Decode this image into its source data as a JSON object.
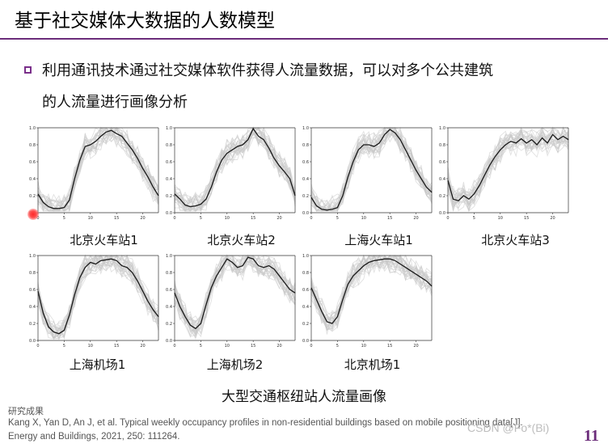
{
  "header": {
    "title": "基于社交媒体大数据的人数模型"
  },
  "content": {
    "bullet_line1": "利用通讯技术通过社交媒体软件获得人流量数据，可以对多个公共建筑",
    "bullet_line2": "的人流量进行画像分析"
  },
  "chart_data": [
    {
      "type": "line",
      "title": "北京火车站1",
      "x": [
        0,
        1,
        2,
        3,
        4,
        5,
        6,
        7,
        8,
        9,
        10,
        11,
        12,
        13,
        14,
        15,
        16,
        17,
        18,
        19,
        20,
        21,
        22,
        23
      ],
      "values": [
        0.22,
        0.12,
        0.07,
        0.05,
        0.05,
        0.06,
        0.15,
        0.4,
        0.62,
        0.78,
        0.8,
        0.84,
        0.9,
        0.95,
        0.97,
        0.93,
        0.9,
        0.82,
        0.74,
        0.64,
        0.52,
        0.42,
        0.3,
        0.2
      ],
      "xticks": [
        "0",
        "5",
        "10",
        "15",
        "20"
      ],
      "yticks": [
        "0.0",
        "0.2",
        "0.4",
        "0.6",
        "0.8",
        "1.0"
      ],
      "ylim": [
        0,
        1
      ]
    },
    {
      "type": "line",
      "title": "北京火车站2",
      "x": [
        0,
        1,
        2,
        3,
        4,
        5,
        6,
        7,
        8,
        9,
        10,
        11,
        12,
        13,
        14,
        15,
        16,
        17,
        18,
        19,
        20,
        21,
        22,
        23
      ],
      "values": [
        0.22,
        0.16,
        0.09,
        0.07,
        0.08,
        0.1,
        0.16,
        0.3,
        0.48,
        0.62,
        0.7,
        0.74,
        0.78,
        0.8,
        0.86,
        0.99,
        0.9,
        0.86,
        0.76,
        0.64,
        0.55,
        0.48,
        0.4,
        0.2
      ],
      "xticks": [
        "0",
        "5",
        "10",
        "15",
        "20"
      ],
      "yticks": [
        "0.0",
        "0.2",
        "0.4",
        "0.6",
        "0.8",
        "1.0"
      ],
      "ylim": [
        0,
        1
      ]
    },
    {
      "type": "line",
      "title": "上海火车站1",
      "x": [
        0,
        1,
        2,
        3,
        4,
        5,
        6,
        7,
        8,
        9,
        10,
        11,
        12,
        13,
        14,
        15,
        16,
        17,
        18,
        19,
        20,
        21,
        22,
        23
      ],
      "values": [
        0.18,
        0.08,
        0.04,
        0.03,
        0.04,
        0.06,
        0.2,
        0.42,
        0.6,
        0.74,
        0.8,
        0.8,
        0.78,
        0.82,
        0.92,
        0.98,
        0.94,
        0.86,
        0.74,
        0.62,
        0.5,
        0.4,
        0.3,
        0.24
      ],
      "xticks": [
        "0",
        "5",
        "10",
        "15",
        "20"
      ],
      "yticks": [
        "0.0",
        "0.2",
        "0.4",
        "0.6",
        "0.8",
        "1.0"
      ],
      "ylim": [
        0,
        1
      ]
    },
    {
      "type": "line",
      "title": "北京火车站3",
      "x": [
        0,
        1,
        2,
        3,
        4,
        5,
        6,
        7,
        8,
        9,
        10,
        11,
        12,
        13,
        14,
        15,
        16,
        17,
        18,
        19,
        20,
        21,
        22,
        23
      ],
      "values": [
        0.38,
        0.16,
        0.14,
        0.2,
        0.16,
        0.22,
        0.32,
        0.44,
        0.56,
        0.66,
        0.74,
        0.8,
        0.84,
        0.82,
        0.87,
        0.82,
        0.86,
        0.8,
        0.88,
        0.82,
        0.92,
        0.86,
        0.9,
        0.86
      ],
      "xticks": [
        "0",
        "5",
        "10",
        "15",
        "20"
      ],
      "yticks": [
        "0.0",
        "0.2",
        "0.4",
        "0.6",
        "0.8",
        "1.0"
      ],
      "ylim": [
        0,
        1
      ]
    },
    {
      "type": "line",
      "title": "上海机场1",
      "x": [
        0,
        1,
        2,
        3,
        4,
        5,
        6,
        7,
        8,
        9,
        10,
        11,
        12,
        13,
        14,
        15,
        16,
        17,
        18,
        19,
        20,
        21,
        22,
        23
      ],
      "values": [
        0.58,
        0.32,
        0.16,
        0.1,
        0.08,
        0.12,
        0.3,
        0.54,
        0.74,
        0.86,
        0.92,
        0.9,
        0.94,
        0.95,
        0.96,
        0.94,
        0.88,
        0.86,
        0.8,
        0.7,
        0.58,
        0.46,
        0.36,
        0.28
      ],
      "xticks": [
        "0",
        "5",
        "10",
        "15",
        "20"
      ],
      "yticks": [
        "0.0",
        "0.2",
        "0.4",
        "0.6",
        "0.8",
        "1.0"
      ],
      "ylim": [
        0,
        1
      ]
    },
    {
      "type": "line",
      "title": "上海机场2",
      "x": [
        0,
        1,
        2,
        3,
        4,
        5,
        6,
        7,
        8,
        9,
        10,
        11,
        12,
        13,
        14,
        15,
        16,
        17,
        18,
        19,
        20,
        21,
        22,
        23
      ],
      "values": [
        0.56,
        0.4,
        0.28,
        0.18,
        0.14,
        0.2,
        0.42,
        0.62,
        0.76,
        0.86,
        0.96,
        0.92,
        0.86,
        0.88,
        0.98,
        0.96,
        0.88,
        0.86,
        0.88,
        0.84,
        0.76,
        0.68,
        0.6,
        0.56
      ],
      "xticks": [
        "0",
        "5",
        "10",
        "15",
        "20"
      ],
      "yticks": [
        "0.0",
        "0.2",
        "0.4",
        "0.6",
        "0.8",
        "1.0"
      ],
      "ylim": [
        0,
        1
      ]
    },
    {
      "type": "line",
      "title": "北京机场1",
      "x": [
        0,
        1,
        2,
        3,
        4,
        5,
        6,
        7,
        8,
        9,
        10,
        11,
        12,
        13,
        14,
        15,
        16,
        17,
        18,
        19,
        20,
        21,
        22,
        23
      ],
      "values": [
        0.62,
        0.48,
        0.34,
        0.22,
        0.2,
        0.28,
        0.48,
        0.66,
        0.76,
        0.82,
        0.88,
        0.92,
        0.94,
        0.95,
        0.96,
        0.96,
        0.94,
        0.9,
        0.86,
        0.82,
        0.78,
        0.74,
        0.7,
        0.64
      ],
      "xticks": [
        "0",
        "5",
        "10",
        "15",
        "20"
      ],
      "yticks": [
        "0.0",
        "0.2",
        "0.4",
        "0.6",
        "0.8",
        "1.0"
      ],
      "ylim": [
        0,
        1
      ]
    }
  ],
  "figure_caption": "大型交通枢纽站人流量画像",
  "reference": {
    "heading": "研究成果",
    "line1": "Kang X, Yan D, An J, et al. Typical weekly occupancy profiles in non-residential buildings based on mobile positioning data[J].",
    "line2": "Energy and Buildings, 2021, 250: 111264."
  },
  "watermark": "CSDN @Fo*(Bi)",
  "page_number": "11",
  "colors": {
    "accent": "#6b2c7a",
    "mean_line": "#1a1a1a",
    "band": "#c8c8c8"
  }
}
